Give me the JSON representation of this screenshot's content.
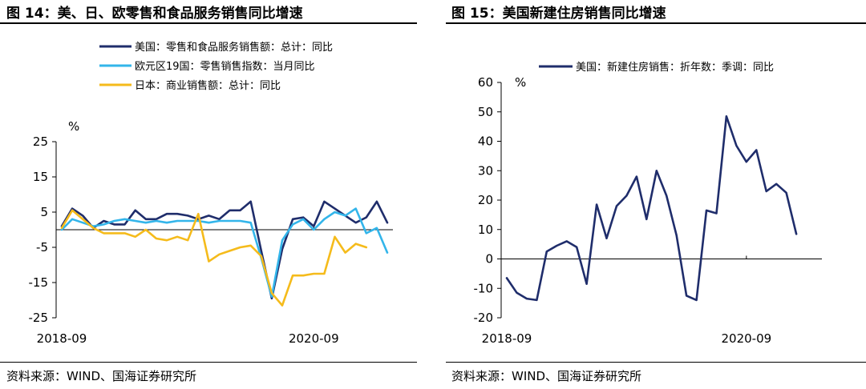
{
  "left_panel": {
    "title": "图 14：美、日、欧零售和食品服务销售同比增速",
    "source": "资料来源：WIND、国海证券研究所"
  },
  "right_panel": {
    "title": "图 15：美国新建住房销售同比增速",
    "source": "资料来源：WIND、国海证券研究所"
  },
  "colors": {
    "navy": "#1f2d6b",
    "cyan": "#33b5ea",
    "gold": "#f5bb1b"
  },
  "chart_data": [
    {
      "type": "line",
      "title": "",
      "ylabel": "%",
      "ylim": [
        -25,
        25
      ],
      "yticks": [
        25,
        15,
        5,
        -5,
        -15,
        -25
      ],
      "x_start": "2018-09",
      "x_end": "2021-04",
      "x_tick_labels": [
        "2018-09",
        "2020-09"
      ],
      "legend_position": "top-left",
      "series": [
        {
          "name": "美国：零售和食品服务销售额：总计：同比",
          "color": "#1f2d6b",
          "values": [
            1.0,
            6.0,
            4.0,
            0.5,
            2.5,
            1.5,
            1.5,
            5.5,
            3.0,
            3.0,
            4.5,
            4.5,
            4.0,
            3.0,
            4.0,
            3.0,
            5.5,
            5.5,
            8.0,
            -6.0,
            -19.5,
            -5.5,
            3.0,
            3.5,
            1.0,
            8.0,
            6.0,
            4.0,
            2.0,
            3.5,
            8.0,
            2.0
          ]
        },
        {
          "name": "欧元区19国：零售销售指数：当月同比",
          "color": "#33b5ea",
          "values": [
            0.0,
            3.0,
            2.0,
            1.0,
            1.5,
            2.5,
            3.0,
            2.5,
            2.0,
            2.5,
            2.0,
            2.5,
            2.5,
            2.5,
            2.0,
            2.5,
            2.5,
            2.5,
            2.0,
            -8.0,
            -19.0,
            -3.0,
            1.5,
            3.0,
            0.0,
            3.0,
            5.0,
            4.0,
            6.0,
            -1.0,
            0.5,
            -6.5
          ]
        },
        {
          "name": "日本：商业销售额：总计：同比",
          "color": "#f5bb1b",
          "values": [
            0.5,
            5.5,
            3.0,
            0.5,
            -1.0,
            -1.0,
            -1.0,
            -2.0,
            0.0,
            -2.5,
            -3.0,
            -2.0,
            -3.0,
            4.5,
            -9.0,
            -7.0,
            -6.0,
            -5.0,
            -4.5,
            -7.5,
            -18.0,
            -21.5,
            -13.0,
            -13.0,
            -12.5,
            -12.5,
            -2.0,
            -6.5,
            -4.0,
            -5.0
          ]
        }
      ]
    },
    {
      "type": "line",
      "title": "",
      "ylabel": "%",
      "ylim": [
        -20,
        60
      ],
      "yticks": [
        60,
        50,
        40,
        30,
        20,
        10,
        0,
        -10,
        -20
      ],
      "x_start": "2018-09",
      "x_end": "2021-04",
      "x_tick_labels": [
        "2018-09",
        "2020-09"
      ],
      "legend_position": "top-left",
      "series": [
        {
          "name": "美国：新建住房销售：折年数：季调：同比",
          "color": "#1f2d6b",
          "values": [
            -6.5,
            -11.5,
            -13.5,
            -14.0,
            2.5,
            4.5,
            6.0,
            4.0,
            -8.5,
            18.5,
            7.0,
            18.0,
            21.5,
            28.0,
            13.5,
            30.0,
            21.5,
            8.0,
            -12.5,
            -14.0,
            16.5,
            15.5,
            48.5,
            38.5,
            33.0,
            37.0,
            23.0,
            25.5,
            22.5,
            8.5
          ]
        }
      ]
    }
  ]
}
